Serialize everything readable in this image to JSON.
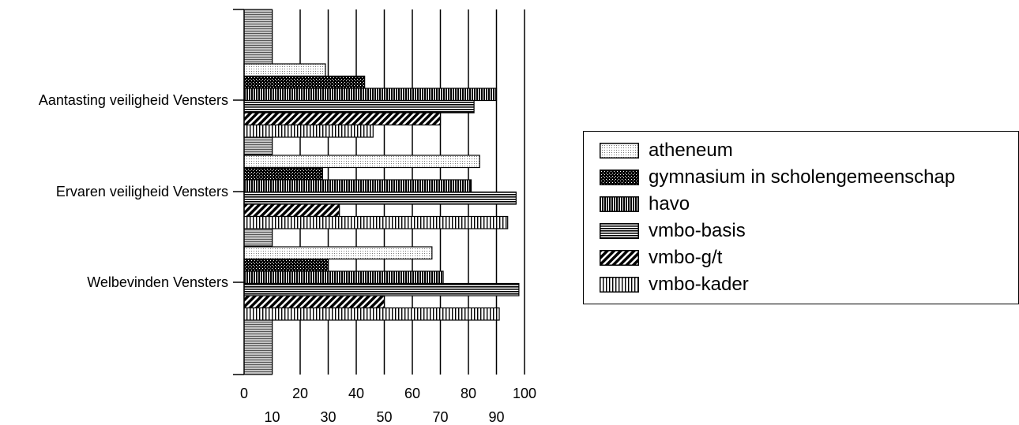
{
  "chart_data": {
    "type": "bar",
    "orientation": "horizontal",
    "categories": [
      "Aantasting veiligheid Vensters",
      "Ervaren veiligheid Vensters",
      "Welbevinden Vensters"
    ],
    "series": [
      {
        "name": "atheneum",
        "pattern": "dots-light",
        "values": [
          29,
          84,
          67
        ]
      },
      {
        "name": "gymnasium in scholengemeenschap",
        "pattern": "dots-dark",
        "values": [
          43,
          28,
          30
        ]
      },
      {
        "name": "havo",
        "pattern": "vertical-dense",
        "values": [
          90,
          81,
          71
        ]
      },
      {
        "name": "vmbo-basis",
        "pattern": "horizontal",
        "values": [
          82,
          97,
          98
        ]
      },
      {
        "name": "vmbo-g/t",
        "pattern": "diagonal",
        "values": [
          70,
          34,
          50
        ]
      },
      {
        "name": "vmbo-kader",
        "pattern": "vertical",
        "values": [
          46,
          94,
          91
        ]
      }
    ],
    "xlim": [
      0,
      100
    ],
    "x_ticks_top_row": [
      "0",
      "20",
      "40",
      "60",
      "80",
      "100"
    ],
    "x_ticks_bottom_row": [
      "10",
      "30",
      "50",
      "70",
      "90"
    ],
    "grid": "vertical lines every 10",
    "legend_position": "right"
  }
}
